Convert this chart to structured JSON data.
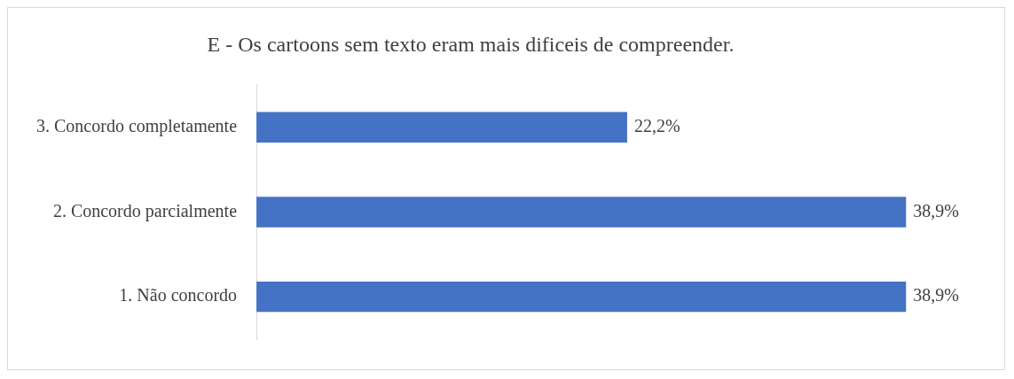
{
  "chart_data": {
    "type": "bar",
    "orientation": "horizontal",
    "title": "E - Os cartoons sem texto eram mais dificeis de compreender.",
    "categories": [
      "3. Concordo completamente",
      "2. Concordo parcialmente",
      "1. Não concordo"
    ],
    "values": [
      22.2,
      38.9,
      38.9
    ],
    "color": "#4472c4",
    "value_labels": [
      "22,2%",
      "38,9%",
      "38,9%"
    ],
    "tick_labels": "y",
    "legend": false
  }
}
